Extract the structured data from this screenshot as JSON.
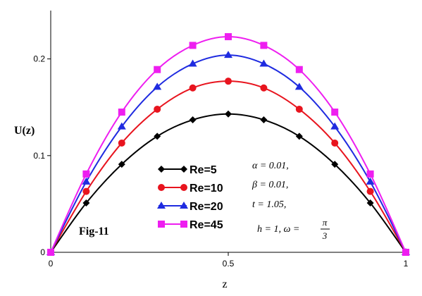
{
  "chart_data": {
    "type": "line",
    "title": "",
    "xlabel": "z",
    "ylabel": "U(z)",
    "xlim": [
      0,
      1
    ],
    "ylim": [
      0,
      0.25
    ],
    "x_ticks": [
      {
        "value": 0,
        "label": "0"
      },
      {
        "value": 0.5,
        "label": "0.5"
      },
      {
        "value": 1,
        "label": "1"
      }
    ],
    "y_ticks": [
      {
        "value": 0,
        "label": "0"
      },
      {
        "value": 0.1,
        "label": "0.1"
      },
      {
        "value": 0.2,
        "label": "0.2"
      }
    ],
    "x": [
      0,
      0.1,
      0.2,
      0.3,
      0.4,
      0.5,
      0.6,
      0.7,
      0.8,
      0.9,
      1.0
    ],
    "series": [
      {
        "name": "Re=5",
        "color": "#000000",
        "marker": "diamond",
        "values": [
          0,
          0.051,
          0.091,
          0.12,
          0.137,
          0.143,
          0.137,
          0.12,
          0.091,
          0.051,
          0
        ]
      },
      {
        "name": "Re=10",
        "color": "#e8141e",
        "marker": "circle",
        "values": [
          0,
          0.063,
          0.113,
          0.148,
          0.17,
          0.177,
          0.17,
          0.148,
          0.113,
          0.063,
          0
        ]
      },
      {
        "name": "Re=20",
        "color": "#1f2be0",
        "marker": "triangle",
        "values": [
          0,
          0.073,
          0.13,
          0.171,
          0.195,
          0.204,
          0.195,
          0.171,
          0.13,
          0.073,
          0
        ]
      },
      {
        "name": "Re=45",
        "color": "#ee1ef0",
        "marker": "square",
        "values": [
          0,
          0.081,
          0.145,
          0.189,
          0.214,
          0.223,
          0.214,
          0.189,
          0.145,
          0.081,
          0
        ]
      }
    ],
    "legend_position": "center-left",
    "grid": false,
    "annotations": {
      "fig_label": "Fig-11",
      "param_alpha": "α = 0.01,",
      "param_beta": "β = 0.01,",
      "param_t": "t = 1.05,",
      "param_h_omega": "h = 1, ω =",
      "frac_num": "π",
      "frac_den": "3"
    }
  }
}
